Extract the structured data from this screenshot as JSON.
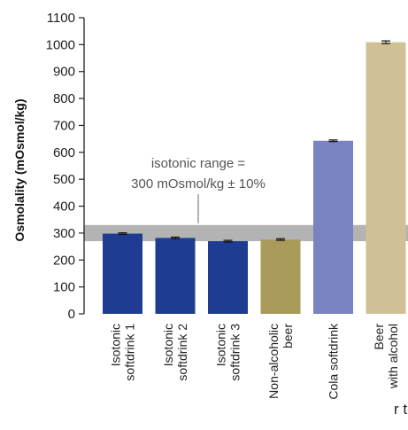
{
  "chart_data": {
    "type": "bar",
    "ylabel": "Osmolality (mOsmol/kg)",
    "ylim": [
      0,
      1100
    ],
    "yticks": [
      0,
      100,
      200,
      300,
      400,
      500,
      600,
      700,
      800,
      900,
      1000,
      1100
    ],
    "categories": [
      [
        "Isotonic",
        "softdrink 1"
      ],
      [
        "Isotonic",
        "softdrink 2"
      ],
      [
        "Isotonic",
        "softdrink 3"
      ],
      [
        "Non-alcoholic",
        "beer"
      ],
      [
        "Cola softdrink"
      ],
      [
        "Beer",
        "with alcohol"
      ]
    ],
    "values": [
      298,
      282,
      270,
      276,
      643,
      1009
    ],
    "errors": [
      3,
      3,
      3,
      3,
      3,
      5
    ],
    "colors": [
      "#1f3c93",
      "#1f3c93",
      "#1f3c93",
      "#ab9b5a",
      "#7a82c1",
      "#cfc096"
    ],
    "band": {
      "from": 270,
      "to": 330,
      "color": "#b3b3b3"
    },
    "annotation": [
      "isotonic range =",
      "300 mOsmol/kg ± 10%"
    ],
    "grid": false
  },
  "clipped_text": "r this"
}
